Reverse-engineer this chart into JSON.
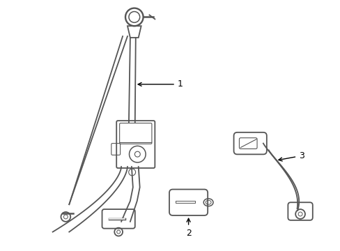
{
  "background_color": "#ffffff",
  "line_color": "#555555",
  "line_width": 1.3,
  "label_fontsize": 9,
  "labels": [
    "1",
    "2",
    "3"
  ]
}
